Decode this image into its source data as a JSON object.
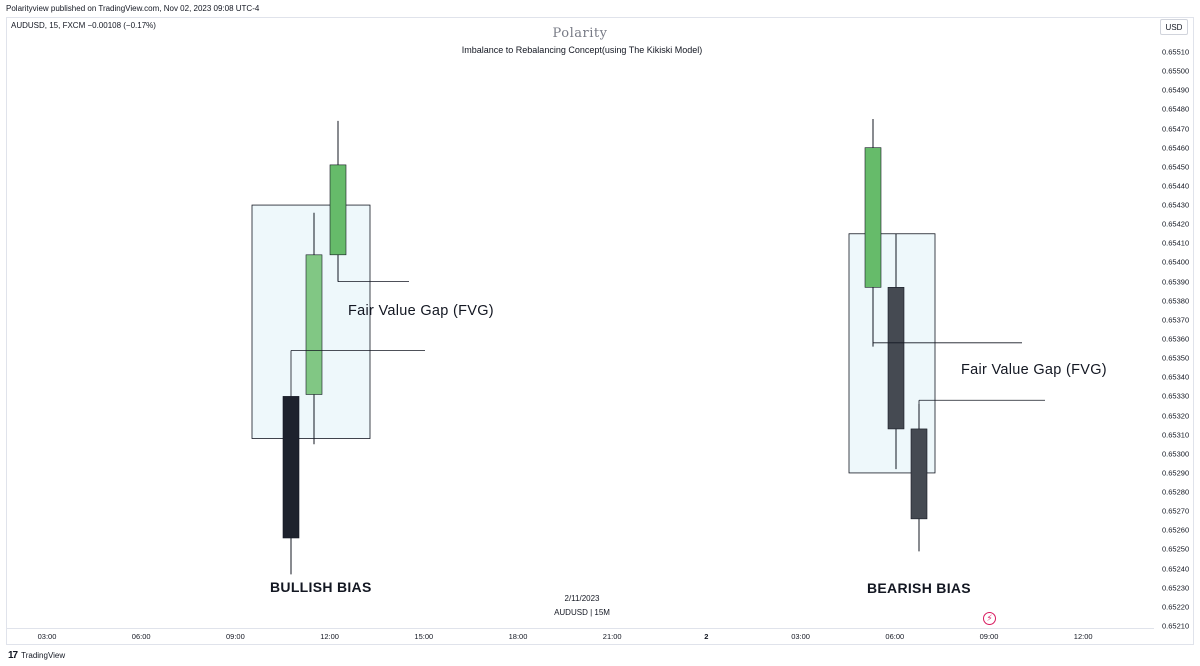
{
  "header": {
    "published_line": "Polarityview published on TradingView.com, Nov 02, 2023 09:08 UTC-4",
    "symbol_line": "AUDUSD, 15, FXCM  −0.00108 (−0.17%)",
    "brand": "Polarity",
    "subtitle": "Imbalance to Rebalancing Concept(using The Kikiski Model)",
    "currency_button": "USD"
  },
  "center_note": {
    "date": "2/11/2023",
    "symbol_tf": "AUDUSD | 15M"
  },
  "annotations": {
    "bullish_label": "BULLISH BIAS",
    "bearish_label": "BEARISH BIAS",
    "fvg_left": "Fair Value Gap (FVG)",
    "fvg_right": "Fair Value Gap (FVG)"
  },
  "footer": {
    "logo_text": "17",
    "brand": "TradingView"
  },
  "colors": {
    "bull_green_dark": "#66bb6a",
    "bull_green_light": "#81c784",
    "bear_black": "#1e222d",
    "bear_slate": "#454a52",
    "box_fill": "#eef8fb",
    "box_stroke": "#131722",
    "accent_bolt": "#d81b60"
  },
  "chart_data": {
    "type": "candlestick",
    "title": "",
    "y_axis": {
      "ticks": [
        "0.65510",
        "0.65500",
        "0.65490",
        "0.65480",
        "0.65470",
        "0.65460",
        "0.65450",
        "0.65440",
        "0.65430",
        "0.65420",
        "0.65410",
        "0.65400",
        "0.65390",
        "0.65380",
        "0.65370",
        "0.65360",
        "0.65350",
        "0.65340",
        "0.65330",
        "0.65320",
        "0.65310",
        "0.65300",
        "0.65290",
        "0.65280",
        "0.65270",
        "0.65260",
        "0.65250",
        "0.65240",
        "0.65230",
        "0.65220",
        "0.65210"
      ],
      "range": [
        0.6521,
        0.6551
      ]
    },
    "x_axis": {
      "ticks": [
        {
          "label": "03:00",
          "bold": false
        },
        {
          "label": "06:00",
          "bold": false
        },
        {
          "label": "09:00",
          "bold": false
        },
        {
          "label": "12:00",
          "bold": false
        },
        {
          "label": "15:00",
          "bold": false
        },
        {
          "label": "18:00",
          "bold": false
        },
        {
          "label": "21:00",
          "bold": false
        },
        {
          "label": "2",
          "bold": true
        },
        {
          "label": "03:00",
          "bold": false
        },
        {
          "label": "06:00",
          "bold": false
        },
        {
          "label": "09:00",
          "bold": false
        },
        {
          "label": "12:00",
          "bold": false
        }
      ]
    },
    "groups": [
      {
        "name": "bullish",
        "candles": [
          {
            "open": 0.6533,
            "close": 0.65256,
            "high": 0.6533,
            "low": 0.65237,
            "color": "bear_black"
          },
          {
            "open": 0.65331,
            "close": 0.65404,
            "high": 0.65426,
            "low": 0.65305,
            "color": "bull_green_light"
          },
          {
            "open": 0.65404,
            "close": 0.65451,
            "high": 0.65474,
            "low": 0.6539,
            "color": "bull_green_dark"
          }
        ],
        "box": {
          "top": 0.6543,
          "bottom": 0.65308
        },
        "lines": [
          0.6539,
          0.65354
        ]
      },
      {
        "name": "bearish",
        "candles": [
          {
            "open": 0.65387,
            "close": 0.6546,
            "high": 0.65475,
            "low": 0.65356,
            "color": "bull_green_dark"
          },
          {
            "open": 0.65387,
            "close": 0.65313,
            "high": 0.65415,
            "low": 0.65292,
            "color": "bear_slate"
          },
          {
            "open": 0.65313,
            "close": 0.65266,
            "high": 0.65326,
            "low": 0.65249,
            "color": "bear_slate"
          }
        ],
        "box": {
          "top": 0.65415,
          "bottom": 0.6529
        },
        "lines": [
          0.65358,
          0.65328
        ]
      }
    ]
  }
}
